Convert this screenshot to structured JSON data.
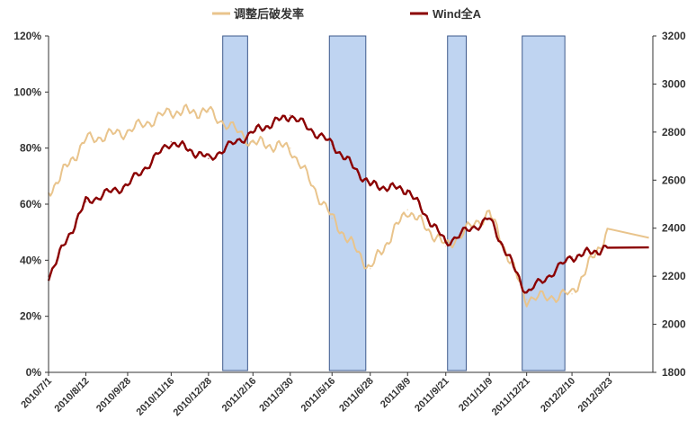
{
  "chart_data": {
    "type": "line",
    "title": "",
    "x": [
      "2010/7/1",
      "2010/8/12",
      "2010/9/28",
      "2010/11/16",
      "2010/12/28",
      "2011/2/16",
      "2011/3/30",
      "2011/5/16",
      "2011/6/28",
      "2011/8/9",
      "2011/9/21",
      "2011/11/9",
      "2011/12/21",
      "2012/2/10",
      "2012/3/23"
    ],
    "y_left": {
      "label": "",
      "ticks": [
        "0%",
        "20%",
        "40%",
        "60%",
        "80%",
        "100%",
        "120%"
      ],
      "range": [
        0,
        120
      ]
    },
    "y_right": {
      "label": "",
      "ticks": [
        "1800",
        "2000",
        "2200",
        "2400",
        "2600",
        "2800",
        "3000",
        "3200"
      ],
      "range": [
        1800,
        3200
      ]
    },
    "legend_position": "top",
    "grid": false,
    "series": [
      {
        "name": "调整后破发率",
        "axis": "left",
        "color": "#E9C48C",
        "values": [
          64,
          83,
          86,
          93,
          93,
          82,
          80,
          55,
          37,
          58,
          45,
          57,
          26,
          28,
          51
        ]
      },
      {
        "name": "Wind全A",
        "axis": "right",
        "color": "#8B0000",
        "values": [
          2200,
          2510,
          2580,
          2760,
          2690,
          2800,
          2870,
          2750,
          2580,
          2560,
          2340,
          2440,
          2130,
          2280,
          2320
        ]
      }
    ],
    "shaded_regions": [
      {
        "start": "2011/1/13",
        "end": "2011/2/10"
      },
      {
        "start": "2011/5/13",
        "end": "2011/6/23"
      },
      {
        "start": "2011/9/23",
        "end": "2011/10/14"
      },
      {
        "start": "2011/12/16",
        "end": "2012/2/2"
      }
    ],
    "shade_color": "#B4CDEE",
    "shade_border": "#3E5A8C",
    "axis_color": "#333333"
  }
}
